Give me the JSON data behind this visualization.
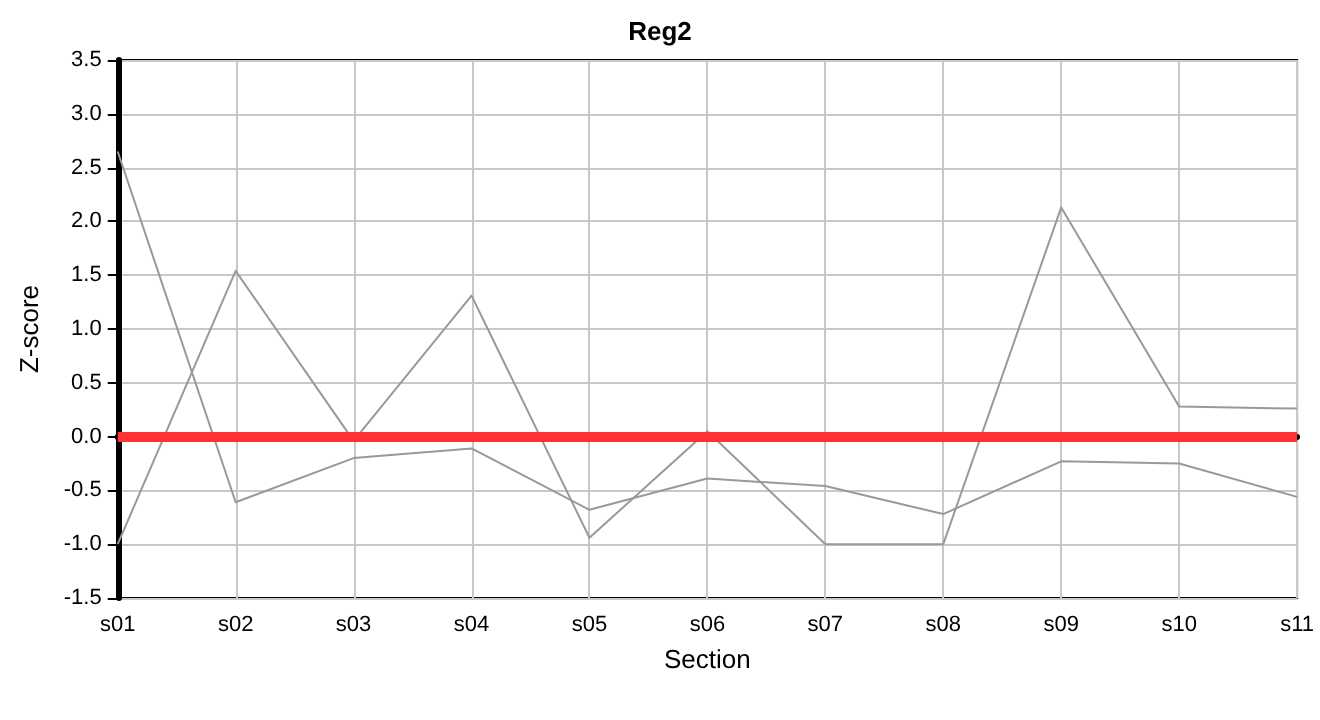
{
  "chart_data": {
    "type": "line",
    "title": "Reg2",
    "xlabel": "Section",
    "ylabel": "Z-score",
    "categories": [
      "s01",
      "s02",
      "s03",
      "s04",
      "s05",
      "s06",
      "s07",
      "s08",
      "s09",
      "s10",
      "s11"
    ],
    "series": [
      {
        "color": "#999999",
        "values": [
          2.65,
          -0.61,
          -0.2,
          -0.11,
          -0.68,
          -0.39,
          -0.46,
          -0.72,
          -0.23,
          -0.25,
          -0.56
        ]
      },
      {
        "color": "#999999",
        "values": [
          -1.0,
          1.54,
          -0.04,
          1.31,
          -0.94,
          0.05,
          -1.0,
          -1.0,
          2.13,
          0.28,
          0.26
        ]
      }
    ],
    "ylim": [
      -1.5,
      3.5
    ],
    "yticks": [
      -1.5,
      {
        "value": -1,
        "label": "-1.0"
      },
      -0.5,
      {
        "value": 0,
        "label": "0.0"
      },
      0.5,
      {
        "value": 1,
        "label": "1.0"
      },
      1.5,
      {
        "value": 2,
        "label": "2.0"
      },
      2.5,
      {
        "value": 3,
        "label": "3.0"
      },
      3.5
    ],
    "ref_lines": [
      {
        "axis": "y",
        "value": 0,
        "color": "#ff3333"
      }
    ],
    "grid": true,
    "marker": "none",
    "line_style": "solid"
  }
}
